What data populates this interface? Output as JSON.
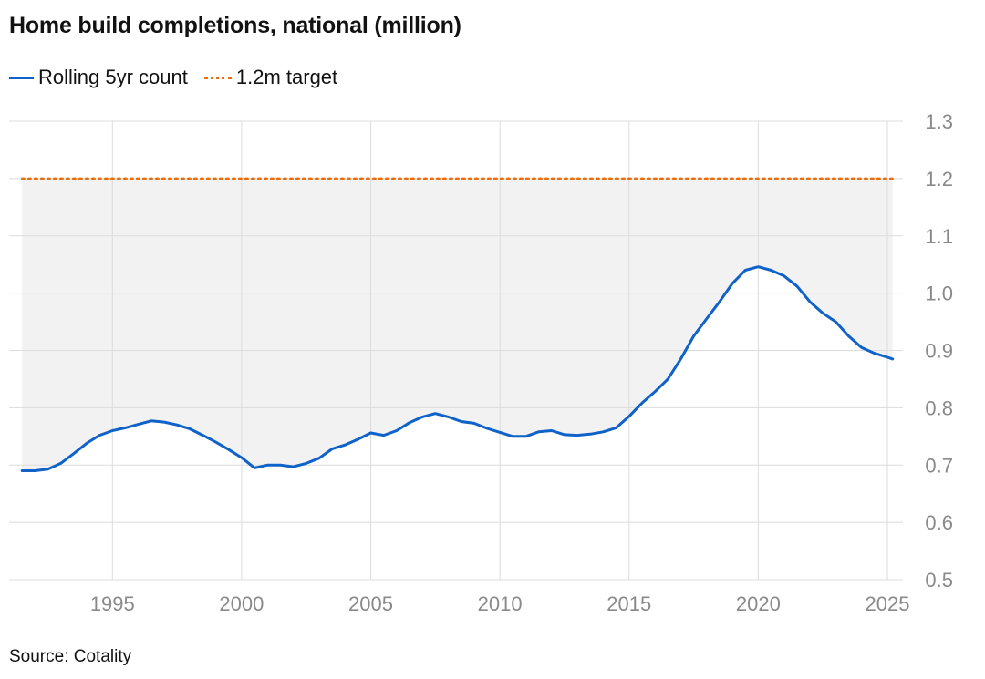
{
  "title": "Home build completions, national (million)",
  "legend": [
    {
      "label": "Rolling 5yr count",
      "color": "#0f62c8",
      "style": "solid"
    },
    {
      "label": "1.2m target",
      "color": "#ea6c0a",
      "style": "dotted"
    }
  ],
  "source": "Source: Cotality",
  "chart_data": {
    "type": "line",
    "title": "Home build completions, national (million)",
    "xlabel": "",
    "ylabel": "",
    "xlim": [
      1991,
      2025.6
    ],
    "ylim": [
      0.5,
      1.3
    ],
    "x_ticks": [
      1995,
      2000,
      2005,
      2010,
      2015,
      2020,
      2025
    ],
    "y_ticks": [
      0.5,
      0.6,
      0.7,
      0.8,
      0.9,
      1.0,
      1.1,
      1.2,
      1.3
    ],
    "y_tick_labels": [
      "0.5",
      "0.6",
      "0.7",
      "0.8",
      "0.9",
      "1.0",
      "1.1",
      "1.2",
      "1.3"
    ],
    "grid": true,
    "y_axis_position": "right",
    "legend_position": "top-left",
    "series": [
      {
        "name": "Rolling 5yr count",
        "color": "#0f62c8",
        "x": [
          1991.5,
          1992.0,
          1992.5,
          1993.0,
          1993.5,
          1994.0,
          1994.5,
          1995.0,
          1995.5,
          1996.0,
          1996.5,
          1997.0,
          1997.5,
          1998.0,
          1998.5,
          1999.0,
          1999.5,
          2000.0,
          2000.5,
          2001.0,
          2001.5,
          2002.0,
          2002.5,
          2003.0,
          2003.5,
          2004.0,
          2004.5,
          2005.0,
          2005.5,
          2006.0,
          2006.5,
          2007.0,
          2007.5,
          2008.0,
          2008.5,
          2009.0,
          2009.5,
          2010.0,
          2010.5,
          2011.0,
          2011.5,
          2012.0,
          2012.5,
          2013.0,
          2013.5,
          2014.0,
          2014.5,
          2015.0,
          2015.5,
          2016.0,
          2016.5,
          2017.0,
          2017.5,
          2018.0,
          2018.5,
          2019.0,
          2019.5,
          2020.0,
          2020.5,
          2021.0,
          2021.5,
          2022.0,
          2022.5,
          2023.0,
          2023.5,
          2024.0,
          2024.5,
          2025.0,
          2025.2
        ],
        "values": [
          0.69,
          0.69,
          0.693,
          0.703,
          0.72,
          0.738,
          0.752,
          0.76,
          0.765,
          0.771,
          0.777,
          0.775,
          0.77,
          0.763,
          0.752,
          0.74,
          0.727,
          0.713,
          0.695,
          0.7,
          0.7,
          0.697,
          0.703,
          0.712,
          0.728,
          0.735,
          0.745,
          0.756,
          0.752,
          0.76,
          0.774,
          0.784,
          0.79,
          0.784,
          0.776,
          0.773,
          0.764,
          0.757,
          0.75,
          0.75,
          0.758,
          0.76,
          0.753,
          0.752,
          0.754,
          0.758,
          0.765,
          0.785,
          0.808,
          0.828,
          0.85,
          0.885,
          0.925,
          0.955,
          0.985,
          1.017,
          1.04,
          1.046,
          1.04,
          1.03,
          1.012,
          0.985,
          0.965,
          0.95,
          0.925,
          0.905,
          0.895,
          0.888,
          0.885
        ]
      },
      {
        "name": "1.2m target",
        "color": "#ea6c0a",
        "style": "dotted",
        "x": [
          1991.5,
          2025.2
        ],
        "values": [
          1.2,
          1.2
        ]
      }
    ]
  }
}
